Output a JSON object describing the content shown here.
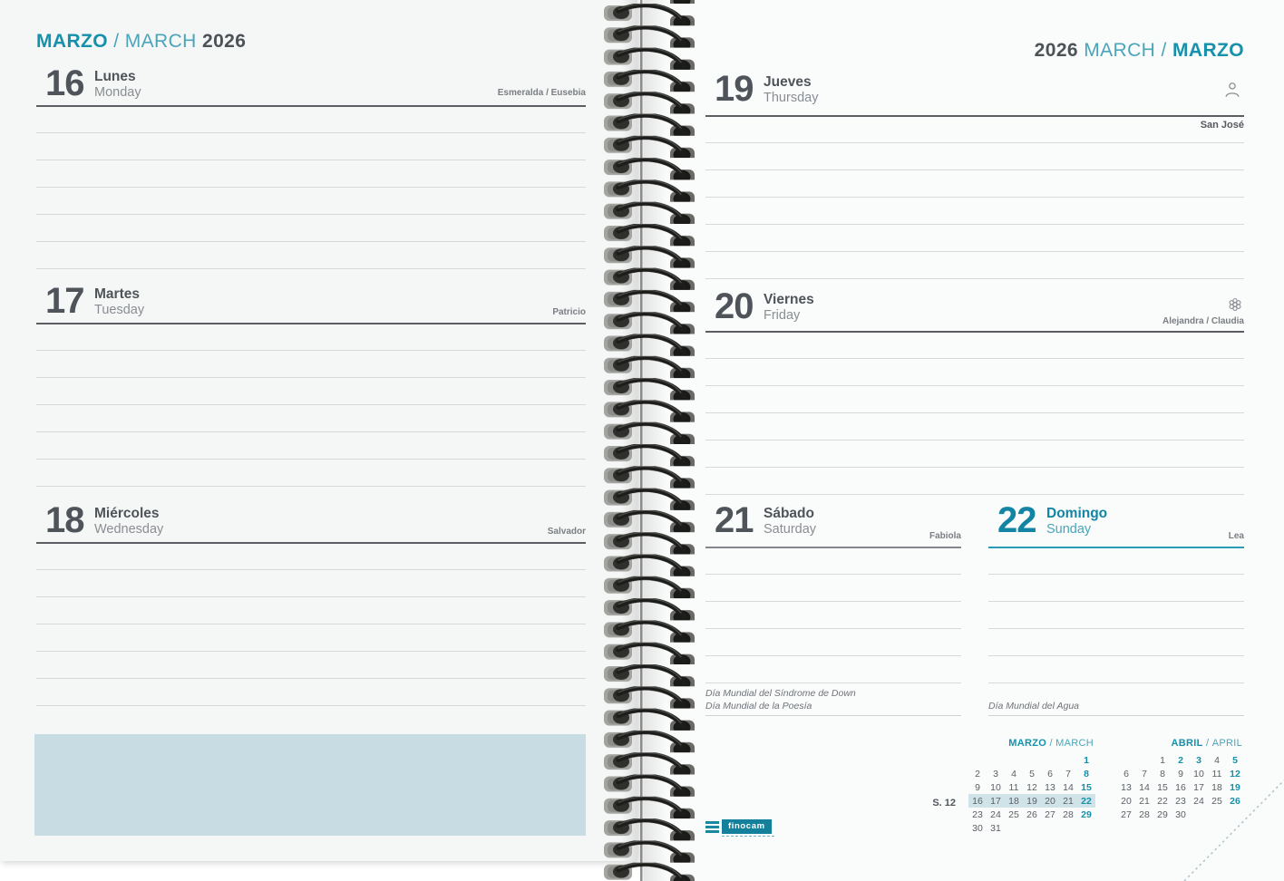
{
  "colors": {
    "accent": "#1591ab",
    "accent_light": "#4aa5ba",
    "text_dark": "#4f545a",
    "text_gray": "#8a8e93",
    "highlight_box": "#c7dde3",
    "minical_highlight": "#cfe3e9"
  },
  "left_page": {
    "header": {
      "month_es": "MARZO",
      "sep": "/",
      "month_en": "MARCH",
      "year": "2026"
    },
    "days": [
      {
        "number": "16",
        "day_es": "Lunes",
        "day_en": "Monday",
        "saints": "Esmeralda / Eusebia"
      },
      {
        "number": "17",
        "day_es": "Martes",
        "day_en": "Tuesday",
        "saints": "Patricio"
      },
      {
        "number": "18",
        "day_es": "Miércoles",
        "day_en": "Wednesday",
        "saints": "Salvador"
      }
    ]
  },
  "right_page": {
    "header": {
      "year": "2026",
      "month_en": "MARCH",
      "sep": "/",
      "month_es": "MARZO"
    },
    "days": [
      {
        "number": "19",
        "day_es": "Jueves",
        "day_en": "Thursday",
        "saints": "San José",
        "icon": "person-icon"
      },
      {
        "number": "20",
        "day_es": "Viernes",
        "day_en": "Friday",
        "saints": "Alejandra / Claudia",
        "icon": "flower-icon"
      },
      {
        "number": "21",
        "day_es": "Sábado",
        "day_en": "Saturday",
        "saints": "Fabiola",
        "notes": [
          "Día Mundial del Síndrome de Down",
          "Día Mundial de la Poesía"
        ]
      },
      {
        "number": "22",
        "day_es": "Domingo",
        "day_en": "Sunday",
        "saints": "Lea",
        "notes": [
          "Día Mundial del Agua"
        ]
      }
    ],
    "week_label": "S. 12",
    "logo_text": "finocam",
    "mini_calendars": [
      {
        "title_primary": "MARZO",
        "title_sep": "/",
        "title_secondary": "MARCH",
        "highlight_week": 3,
        "weeks": [
          [
            {
              "t": ""
            },
            {
              "t": ""
            },
            {
              "t": ""
            },
            {
              "t": ""
            },
            {
              "t": ""
            },
            {
              "t": ""
            },
            {
              "t": "1",
              "a": true
            }
          ],
          [
            {
              "t": "2"
            },
            {
              "t": "3"
            },
            {
              "t": "4"
            },
            {
              "t": "5"
            },
            {
              "t": "6"
            },
            {
              "t": "7"
            },
            {
              "t": "8",
              "a": true
            }
          ],
          [
            {
              "t": "9"
            },
            {
              "t": "10"
            },
            {
              "t": "11"
            },
            {
              "t": "12"
            },
            {
              "t": "13"
            },
            {
              "t": "14"
            },
            {
              "t": "15",
              "a": true
            }
          ],
          [
            {
              "t": "16"
            },
            {
              "t": "17"
            },
            {
              "t": "18"
            },
            {
              "t": "19"
            },
            {
              "t": "20"
            },
            {
              "t": "21"
            },
            {
              "t": "22",
              "a": true
            }
          ],
          [
            {
              "t": "23"
            },
            {
              "t": "24"
            },
            {
              "t": "25"
            },
            {
              "t": "26"
            },
            {
              "t": "27"
            },
            {
              "t": "28"
            },
            {
              "t": "29",
              "a": true
            }
          ],
          [
            {
              "t": "30"
            },
            {
              "t": "31"
            },
            {
              "t": ""
            },
            {
              "t": ""
            },
            {
              "t": ""
            },
            {
              "t": ""
            },
            {
              "t": ""
            }
          ]
        ]
      },
      {
        "title_primary": "ABRIL",
        "title_sep": "/",
        "title_secondary": "APRIL",
        "highlight_week": -1,
        "weeks": [
          [
            {
              "t": ""
            },
            {
              "t": ""
            },
            {
              "t": "1"
            },
            {
              "t": "2",
              "a": true
            },
            {
              "t": "3",
              "a": true
            },
            {
              "t": "4"
            },
            {
              "t": "5",
              "a": true
            }
          ],
          [
            {
              "t": "6"
            },
            {
              "t": "7"
            },
            {
              "t": "8"
            },
            {
              "t": "9"
            },
            {
              "t": "10"
            },
            {
              "t": "11"
            },
            {
              "t": "12",
              "a": true
            }
          ],
          [
            {
              "t": "13"
            },
            {
              "t": "14"
            },
            {
              "t": "15"
            },
            {
              "t": "16"
            },
            {
              "t": "17"
            },
            {
              "t": "18"
            },
            {
              "t": "19",
              "a": true
            }
          ],
          [
            {
              "t": "20"
            },
            {
              "t": "21"
            },
            {
              "t": "22"
            },
            {
              "t": "23"
            },
            {
              "t": "24"
            },
            {
              "t": "25"
            },
            {
              "t": "26",
              "a": true
            }
          ],
          [
            {
              "t": "27"
            },
            {
              "t": "28"
            },
            {
              "t": "29"
            },
            {
              "t": "30"
            },
            {
              "t": ""
            },
            {
              "t": ""
            },
            {
              "t": ""
            }
          ]
        ]
      }
    ]
  }
}
